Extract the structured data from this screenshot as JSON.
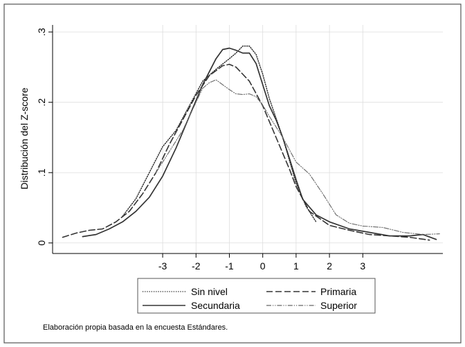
{
  "chart_data": {
    "type": "line",
    "title": "",
    "xlabel": "",
    "ylabel": "Distribución del Z-score",
    "xlim": [
      -6.3,
      5.4
    ],
    "ylim": [
      -0.015,
      0.31
    ],
    "x_ticks": [
      -3,
      -2,
      -1,
      0,
      1,
      2,
      3
    ],
    "x_tick_labels": [
      "-3",
      "-2",
      "-1",
      "0",
      "1",
      "2",
      "3"
    ],
    "y_ticks": [
      0,
      0.1,
      0.2,
      0.3
    ],
    "y_tick_labels": [
      "0",
      ".1",
      ".2",
      ".3"
    ],
    "grid": true,
    "legend_position": "bottom",
    "note": "Elaboración propia basada en la encuesta Estándares.",
    "colors": {
      "background": "#ffffff",
      "grid": "#dddddd",
      "line": "#333333"
    },
    "series": [
      {
        "name": "Sin nivel",
        "style": "dotted",
        "x": [
          -4.2,
          -3.8,
          -3.4,
          -3.0,
          -2.6,
          -2.2,
          -1.8,
          -1.4,
          -1.0,
          -0.8,
          -0.6,
          -0.4,
          -0.2,
          0.0,
          0.2,
          0.6,
          1.0,
          1.3,
          1.6
        ],
        "y": [
          0.038,
          0.063,
          0.1,
          0.137,
          0.16,
          0.195,
          0.23,
          0.247,
          0.262,
          0.27,
          0.28,
          0.28,
          0.268,
          0.24,
          0.205,
          0.15,
          0.085,
          0.052,
          0.03
        ]
      },
      {
        "name": "Primaria",
        "style": "dashed",
        "x": [
          -6.0,
          -5.6,
          -5.2,
          -4.8,
          -4.4,
          -4.0,
          -3.6,
          -3.2,
          -2.8,
          -2.4,
          -2.0,
          -1.6,
          -1.2,
          -1.0,
          -0.8,
          -0.4,
          0.0,
          0.4,
          0.8,
          1.0,
          1.4,
          2.0,
          2.6,
          3.2,
          3.8,
          4.4,
          5.0
        ],
        "y": [
          0.008,
          0.014,
          0.018,
          0.02,
          0.03,
          0.045,
          0.07,
          0.1,
          0.14,
          0.175,
          0.21,
          0.238,
          0.252,
          0.254,
          0.25,
          0.23,
          0.195,
          0.15,
          0.105,
          0.08,
          0.045,
          0.025,
          0.018,
          0.012,
          0.01,
          0.008,
          0.004
        ]
      },
      {
        "name": "Secundaria",
        "style": "solid",
        "x": [
          -5.4,
          -5.0,
          -4.6,
          -4.2,
          -3.8,
          -3.4,
          -3.0,
          -2.6,
          -2.2,
          -1.8,
          -1.4,
          -1.2,
          -1.0,
          -0.8,
          -0.6,
          -0.4,
          -0.2,
          0.0,
          0.2,
          0.4,
          0.6,
          0.8,
          1.0,
          1.2,
          1.6,
          2.0,
          2.6,
          3.2,
          3.8,
          4.4,
          4.8,
          5.2
        ],
        "y": [
          0.009,
          0.012,
          0.02,
          0.03,
          0.045,
          0.065,
          0.095,
          0.135,
          0.18,
          0.225,
          0.262,
          0.275,
          0.277,
          0.274,
          0.27,
          0.27,
          0.255,
          0.225,
          0.195,
          0.175,
          0.15,
          0.12,
          0.09,
          0.062,
          0.04,
          0.03,
          0.02,
          0.015,
          0.01,
          0.01,
          0.012,
          0.005
        ]
      },
      {
        "name": "Superior",
        "style": "dash-dot",
        "x": [
          -3.2,
          -2.8,
          -2.4,
          -2.0,
          -1.8,
          -1.6,
          -1.4,
          -1.2,
          -1.0,
          -0.8,
          -0.6,
          -0.4,
          -0.2,
          0.0,
          0.2,
          0.6,
          1.0,
          1.4,
          1.8,
          2.2,
          2.6,
          3.0,
          3.6,
          4.2,
          4.8,
          5.3
        ],
        "y": [
          0.1,
          0.13,
          0.16,
          0.2,
          0.22,
          0.228,
          0.232,
          0.225,
          0.218,
          0.212,
          0.211,
          0.212,
          0.208,
          0.196,
          0.18,
          0.15,
          0.115,
          0.098,
          0.07,
          0.04,
          0.028,
          0.024,
          0.022,
          0.015,
          0.012,
          0.013
        ]
      }
    ]
  }
}
